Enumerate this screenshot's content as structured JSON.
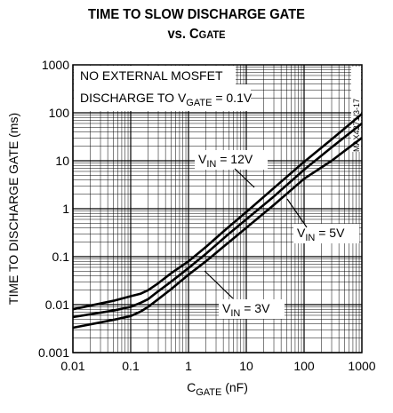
{
  "chart_data": {
    "type": "line",
    "title_line1": "TIME TO SLOW DISCHARGE GATE",
    "title_line2": "vs. C",
    "title_line2_sub": "GATE",
    "xlabel": "C",
    "xlabel_sub": "GATE",
    "xlabel_unit": " (nF)",
    "ylabel": "TIME TO DISCHARGE GATE (ms)",
    "x_scale": "log",
    "y_scale": "log",
    "xlim": [
      0.01,
      1000
    ],
    "ylim": [
      0.001,
      1000
    ],
    "x_ticks": [
      "0.01",
      "0.1",
      "1",
      "10",
      "100",
      "1000"
    ],
    "y_ticks": [
      "0.001",
      "0.01",
      "0.1",
      "1",
      "10",
      "100",
      "1000"
    ],
    "grid": true,
    "annotations": [
      "NO EXTERNAL MOSFET",
      "DISCHARGE TO V",
      "GATE",
      " = 0.1V"
    ],
    "part_number": "MAX4271/3-17",
    "series": [
      {
        "name_main": "V",
        "name_sub": "IN",
        "name_rest": " = 12V",
        "x": [
          0.01,
          0.05,
          0.1,
          0.15,
          0.2,
          0.3,
          0.5,
          1,
          2,
          5,
          10,
          30,
          100,
          300,
          1000
        ],
        "y": [
          0.008,
          0.012,
          0.015,
          0.017,
          0.02,
          0.028,
          0.045,
          0.08,
          0.16,
          0.42,
          0.85,
          2.7,
          9.5,
          28,
          95
        ]
      },
      {
        "name_main": "V",
        "name_sub": "IN",
        "name_rest": " = 5V",
        "x": [
          0.01,
          0.05,
          0.1,
          0.15,
          0.2,
          0.3,
          0.5,
          1,
          2,
          5,
          10,
          30,
          100,
          300,
          1000
        ],
        "y": [
          0.0055,
          0.0075,
          0.009,
          0.011,
          0.013,
          0.019,
          0.03,
          0.058,
          0.115,
          0.3,
          0.6,
          1.8,
          6.5,
          19,
          60
        ]
      },
      {
        "name_main": "V",
        "name_sub": "IN",
        "name_rest": " = 3V",
        "x": [
          0.01,
          0.05,
          0.1,
          0.15,
          0.2,
          0.3,
          0.5,
          1,
          2,
          5,
          10,
          30,
          100,
          300,
          1000
        ],
        "y": [
          0.0033,
          0.0048,
          0.0058,
          0.0072,
          0.009,
          0.013,
          0.021,
          0.042,
          0.08,
          0.2,
          0.4,
          1.2,
          4.2,
          10,
          30
        ]
      }
    ]
  }
}
